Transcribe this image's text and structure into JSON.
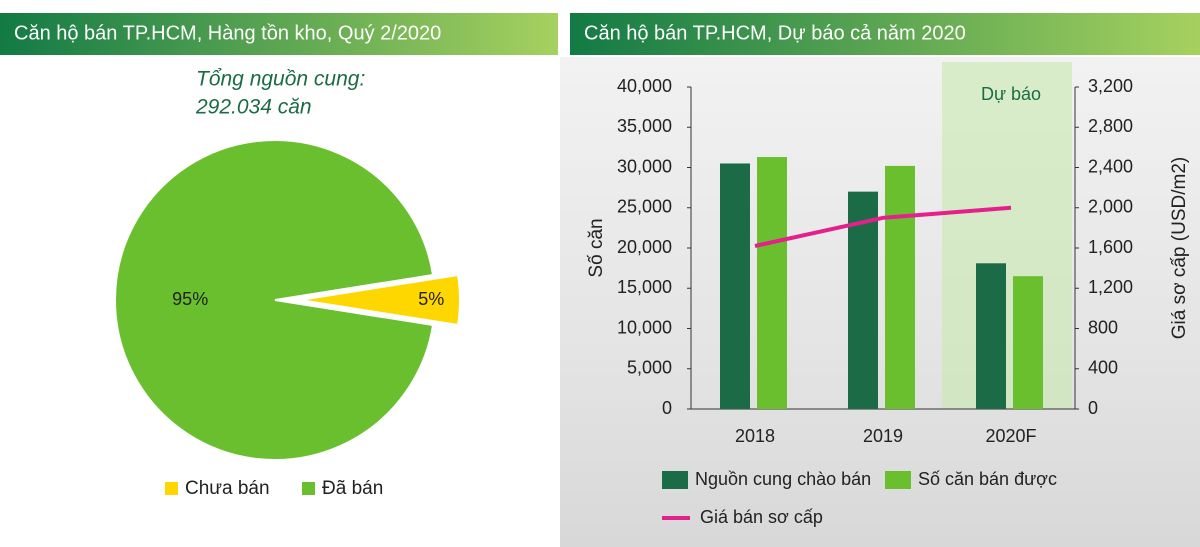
{
  "chart_data": [
    {
      "type": "pie",
      "title": "Căn hộ bán TP.HCM, Hàng tồn kho, Quý 2/2020",
      "annotation": [
        "Tổng nguồn cung:",
        "292.034 căn"
      ],
      "categories": [
        "Chưa bán",
        "Đã bán"
      ],
      "values": [
        5,
        95
      ],
      "value_labels": [
        "5%",
        "95%"
      ],
      "colors": [
        "#ffd700",
        "#6abf2e"
      ]
    },
    {
      "type": "bar",
      "title": "Căn hộ bán TP.HCM, Dự báo cả năm 2020",
      "annotation": "Dự báo",
      "categories": [
        "2018",
        "2019",
        "2020F"
      ],
      "ylabel": "Số căn",
      "y2label": "Giá sơ cấp (USD/m2)",
      "series": [
        {
          "name": "Nguồn cung chào bán",
          "color": "#1b6b46",
          "values": [
            30500,
            27000,
            18100
          ]
        },
        {
          "name": "Số căn bán được",
          "color": "#6abf2e",
          "values": [
            31300,
            30200,
            16500
          ]
        },
        {
          "name": "Giá bán sơ cấp",
          "type": "line",
          "axis": "y2",
          "color": "#e4208c",
          "values": [
            1620,
            1900,
            2000
          ]
        }
      ],
      "ylim": [
        0,
        40000
      ],
      "yticks": [
        0,
        {
          "value": 5000,
          "label": "5,000"
        },
        {
          "value": 10000,
          "label": "10,000"
        },
        {
          "value": 15000,
          "label": "15,000"
        },
        {
          "value": 20000,
          "label": "20,000"
        },
        {
          "value": 25000,
          "label": "25,000"
        },
        {
          "value": 30000,
          "label": "30,000"
        },
        {
          "value": 35000,
          "label": "35,000"
        },
        {
          "value": 40000,
          "label": "40,000"
        }
      ],
      "y2lim": [
        0,
        3200
      ],
      "y2ticks": [
        0,
        400,
        800,
        {
          "value": 1200,
          "label": "1,200"
        },
        {
          "value": 1600,
          "label": "1,600"
        },
        {
          "value": 2000,
          "label": "2,000"
        },
        {
          "value": 2400,
          "label": "2,400"
        },
        {
          "value": 2800,
          "label": "2,800"
        },
        {
          "value": 3200,
          "label": "3,200"
        }
      ]
    }
  ]
}
